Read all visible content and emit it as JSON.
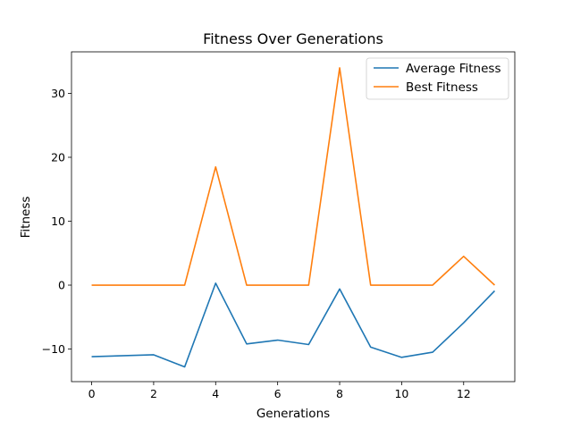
{
  "chart_data": {
    "type": "line",
    "title": "Fitness Over Generations",
    "xlabel": "Generations",
    "ylabel": "Fitness",
    "xlim": [
      -0.65,
      13.65
    ],
    "ylim": [
      -15.1,
      36.5
    ],
    "xticks": [
      0,
      2,
      4,
      6,
      8,
      10,
      12
    ],
    "yticks": [
      -10,
      0,
      10,
      20,
      30
    ],
    "grid": false,
    "legend_position": "upper right",
    "x": [
      0,
      2,
      3,
      4,
      5,
      6,
      7,
      8,
      9,
      10,
      11,
      12,
      13
    ],
    "series": [
      {
        "name": "Average Fitness",
        "color": "#1f77b4",
        "values": [
          -11.2,
          -10.9,
          -12.8,
          0.3,
          -9.2,
          -8.6,
          -9.3,
          -0.6,
          -9.7,
          -11.3,
          -10.5,
          -5.9,
          -0.9
        ]
      },
      {
        "name": "Best Fitness",
        "color": "#ff7f0e",
        "values": [
          0,
          0,
          0,
          18.5,
          0,
          0,
          0,
          34,
          0,
          0,
          0,
          4.5,
          0
        ]
      }
    ]
  }
}
